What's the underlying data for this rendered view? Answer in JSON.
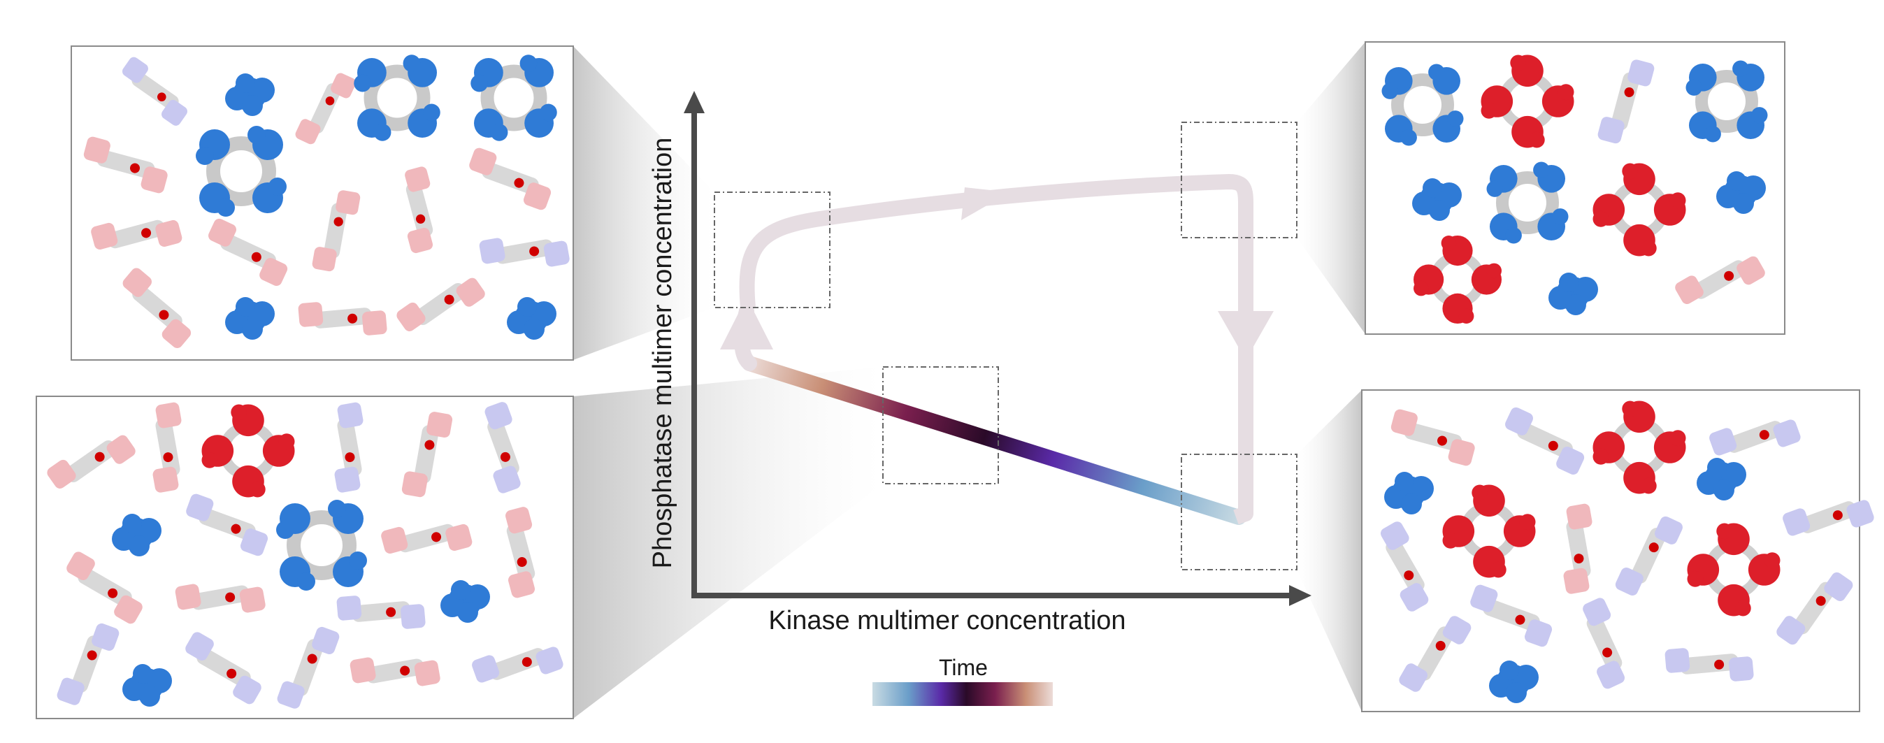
{
  "axes": {
    "x_label": "Kinase multimer concentration",
    "y_label": "Phosphatase multimer concentration"
  },
  "legend": {
    "title": "Time",
    "gradient_colors": [
      "#c9dbe3",
      "#6a9ec9",
      "#5a2aa8",
      "#2a0a28",
      "#7a1f4e",
      "#c98f76",
      "#ecdcd8"
    ]
  },
  "path": {
    "early_color": "#e6dde2",
    "note_colors": {
      "start": "#c9dbe3",
      "end": "#e6dde2"
    }
  },
  "colors": {
    "phosphatase_active": "#2f7bd6",
    "phosphatase_dim": "#c8c8f0",
    "kinase_active": "#dd1f2a",
    "kinase_dim": "#f0b8bc",
    "scaffold": "#d4d4d4",
    "marker": "#d00000"
  },
  "panels": [
    {
      "name": "top-left-snapshot"
    },
    {
      "name": "bottom-left-snapshot"
    },
    {
      "name": "top-right-snapshot"
    },
    {
      "name": "bottom-right-snapshot"
    }
  ]
}
